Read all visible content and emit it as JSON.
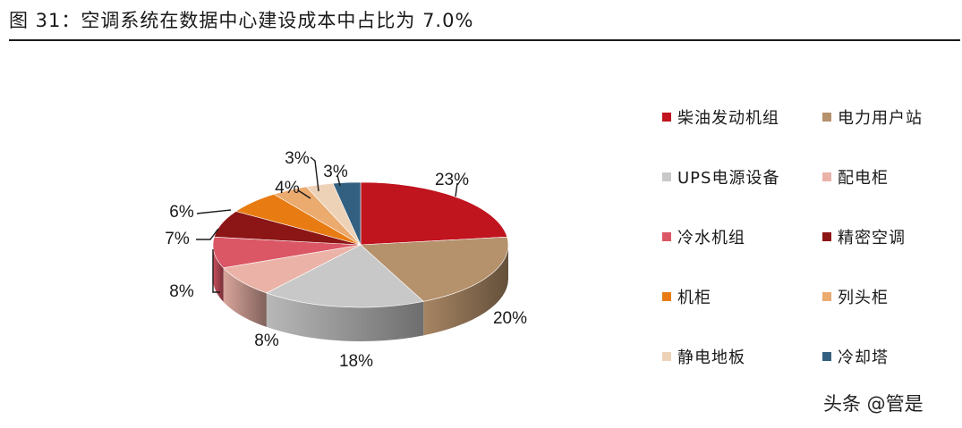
{
  "figure": {
    "title": "图 31：空调系统在数据中心建设成本中占比为 7.0%",
    "watermark": "头条 @管是"
  },
  "chart_data": {
    "type": "pie",
    "style": "3d",
    "title": "",
    "legend_position": "right",
    "series": [
      {
        "name": "柴油发动机组",
        "value": 23,
        "label": "23%",
        "color": "#C0141E"
      },
      {
        "name": "电力用户站",
        "value": 20,
        "label": "20%",
        "color": "#B5916C"
      },
      {
        "name": "UPS电源设备",
        "value": 18,
        "label": "18%",
        "color": "#C8C8C8"
      },
      {
        "name": "配电柜",
        "value": 8,
        "label": "8%",
        "color": "#EBB3A8"
      },
      {
        "name": "冷水机组",
        "value": 8,
        "label": "8%",
        "color": "#DB5766"
      },
      {
        "name": "精密空调",
        "value": 7,
        "label": "7%",
        "color": "#8C1515"
      },
      {
        "name": "机柜",
        "value": 6,
        "label": "6%",
        "color": "#E87B12"
      },
      {
        "name": "列头柜",
        "value": 4,
        "label": "4%",
        "color": "#EBAA6E"
      },
      {
        "name": "静电地板",
        "value": 3,
        "label": "3%",
        "color": "#EED2B8"
      },
      {
        "name": "冷却塔",
        "value": 3,
        "label": "3%",
        "color": "#336080"
      }
    ]
  }
}
